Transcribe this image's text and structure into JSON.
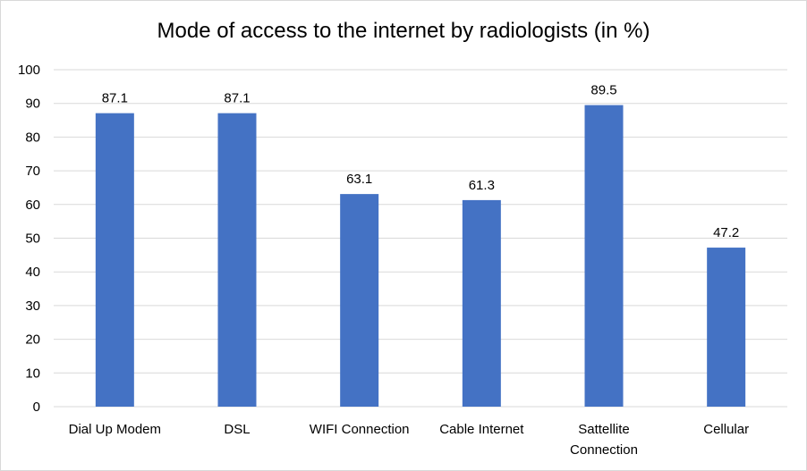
{
  "chart_data": {
    "type": "bar",
    "title": "Mode of access to the internet by radiologists (in %)",
    "categories": [
      [
        "Dial Up Modem"
      ],
      [
        "DSL"
      ],
      [
        "WIFI Connection"
      ],
      [
        "Cable Internet"
      ],
      [
        "Sattellite",
        "Connection"
      ],
      [
        "Cellular"
      ]
    ],
    "values": [
      87.1,
      87.1,
      63.1,
      61.3,
      89.5,
      47.2
    ],
    "data_labels": [
      "87.1",
      "87.1",
      "63.1",
      "61.3",
      "89.5",
      "47.2"
    ],
    "ylim": [
      0,
      100
    ],
    "yticks": [
      0,
      10,
      20,
      30,
      40,
      50,
      60,
      70,
      80,
      90,
      100
    ],
    "xlabel": "",
    "ylabel": "",
    "grid": true,
    "legend": "none",
    "colors": {
      "bar": "#4472c4",
      "grid": "#d9d9d9",
      "axis": "#d9d9d9"
    }
  }
}
